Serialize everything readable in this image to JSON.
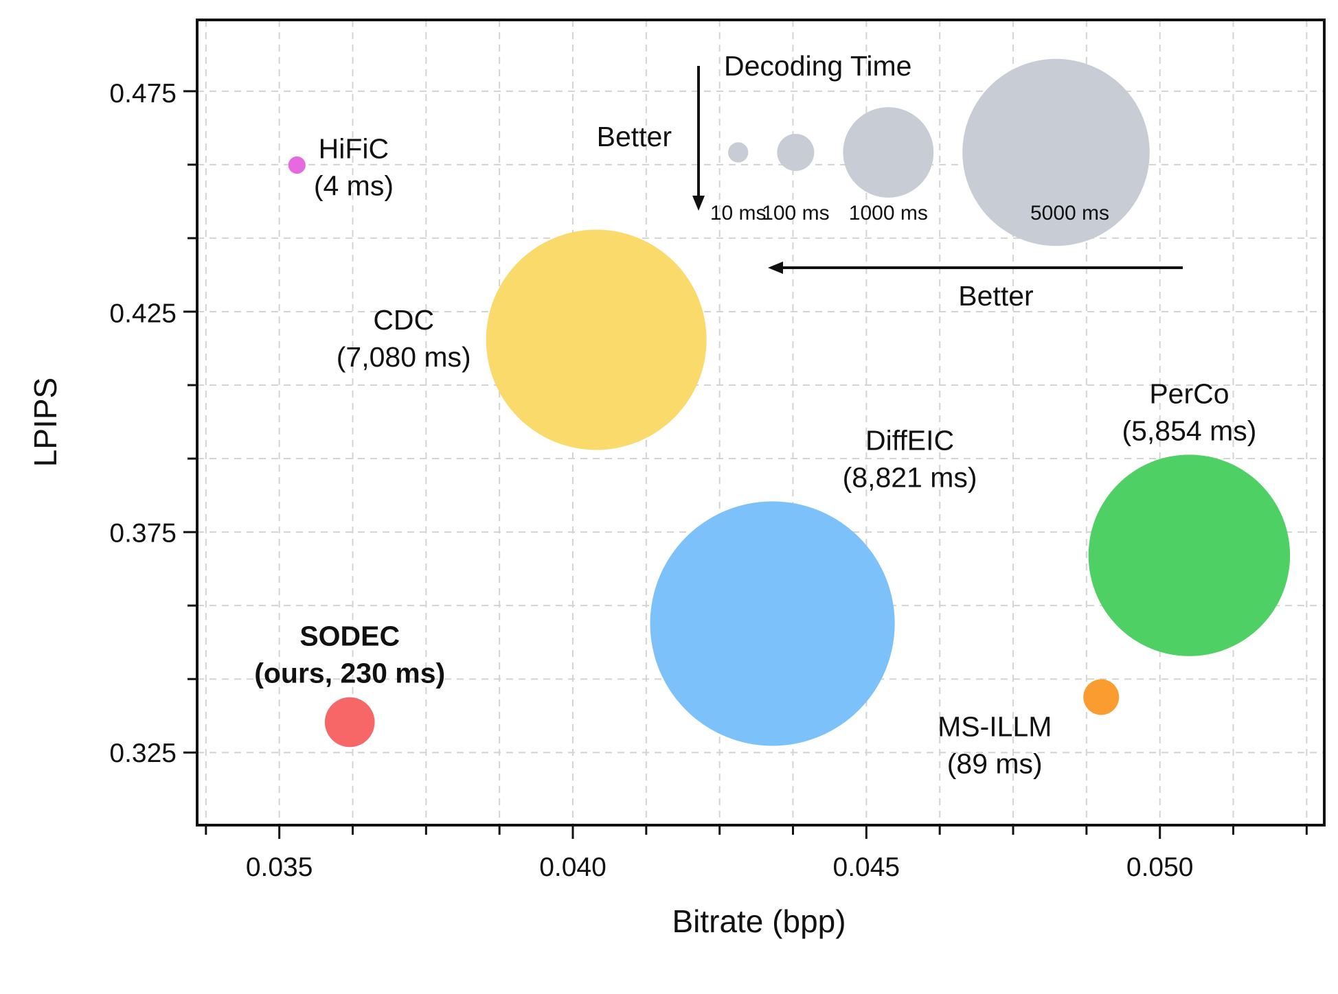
{
  "chart_data": {
    "type": "bubble-scatter",
    "xlabel": "Bitrate (bpp)",
    "ylabel": "LPIPS",
    "xlim": [
      0.0336,
      0.0528
    ],
    "ylim": [
      0.3085,
      0.4915
    ],
    "x_major_ticks": [
      0.035,
      0.04,
      0.045,
      0.05
    ],
    "x_tick_labels": [
      "0.035",
      "0.040",
      "0.045",
      "0.050"
    ],
    "x_minor_step": 0.00125,
    "y_major_ticks": [
      0.325,
      0.375,
      0.425,
      0.475
    ],
    "y_tick_labels": [
      "0.325",
      "0.375",
      "0.425",
      "0.475"
    ],
    "y_minor_step": 0.0167,
    "grid": true,
    "points": [
      {
        "name": "HiFiC",
        "annotation": "(4 ms)",
        "x": 0.0353,
        "y": 0.4585,
        "decode_ms": 4,
        "color": "#e56ae0",
        "bold": false,
        "label_side": "right"
      },
      {
        "name": "CDC",
        "annotation": "(7,080 ms)",
        "x": 0.0404,
        "y": 0.4188,
        "decode_ms": 7080,
        "color": "#f9da6b",
        "bold": false,
        "label_side": "left"
      },
      {
        "name": "DiffEIC",
        "annotation": "(8,821 ms)",
        "x": 0.0434,
        "y": 0.3543,
        "decode_ms": 8821,
        "color": "#7cc1fa",
        "bold": false,
        "label_side": "above-right"
      },
      {
        "name": "PerCo",
        "annotation": "(5,854 ms)",
        "x": 0.0505,
        "y": 0.3698,
        "decode_ms": 5854,
        "color": "#4fd064",
        "bold": false,
        "label_side": "above"
      },
      {
        "name": "MS-ILLM",
        "annotation": "(89 ms)",
        "x": 0.049,
        "y": 0.3376,
        "decode_ms": 89,
        "color": "#fb9c31",
        "bold": false,
        "label_side": "below-left"
      },
      {
        "name": "SODEC",
        "annotation": "(ours, 230 ms)",
        "x": 0.0362,
        "y": 0.3319,
        "decode_ms": 230,
        "color": "#f76767",
        "bold": true,
        "label_side": "above"
      }
    ],
    "size_legend": {
      "title": "Decoding Time",
      "color": "#c8ccd4",
      "entries": [
        {
          "ms": 10,
          "label": "10 ms"
        },
        {
          "ms": 100,
          "label": "100 ms"
        },
        {
          "ms": 1000,
          "label": "1000 ms"
        },
        {
          "ms": 5000,
          "label": "5000 ms"
        }
      ]
    },
    "annotations": {
      "vertical_better": "Better",
      "horizontal_better": "Better"
    }
  }
}
